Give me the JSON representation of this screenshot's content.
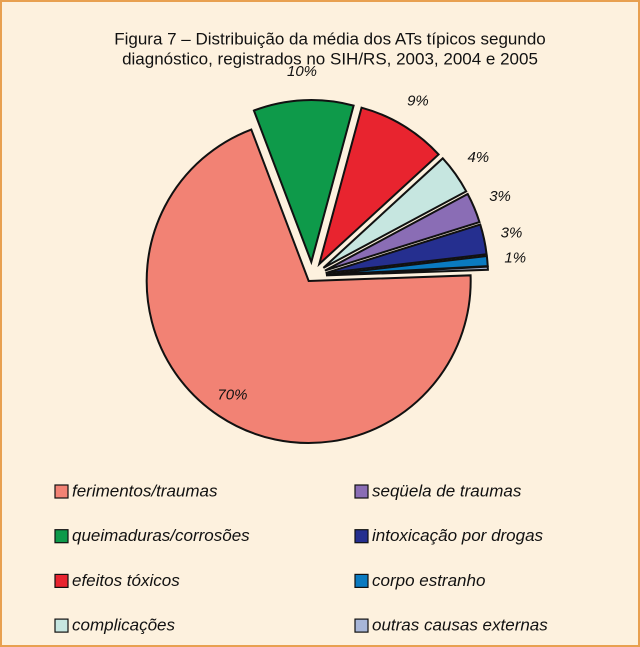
{
  "chart_data": {
    "type": "pie",
    "title": [
      "Figura 7 – Distribuição da média dos ATs típicos segundo",
      "diagnóstico, registrados no SIH/RS, 2003, 2004 e 2005"
    ],
    "categories": [
      "ferimentos/traumas",
      "queimaduras/corrosões",
      "efeitos tóxicos",
      "complicações",
      "seqüela de traumas",
      "intoxicação por drogas",
      "corpo estranho",
      "outras causas externas"
    ],
    "values": [
      70,
      10,
      9,
      4,
      3,
      3,
      1,
      0.3
    ],
    "value_labels": [
      "70%",
      "10%",
      "9%",
      "4%",
      "3%",
      "3%",
      "1%",
      null
    ],
    "colors": [
      "#f28274",
      "#0e9a4a",
      "#e8242f",
      "#c6e6e0",
      "#8a6db5",
      "#252f8f",
      "#0a7ac0",
      "#a8b6d8"
    ]
  }
}
